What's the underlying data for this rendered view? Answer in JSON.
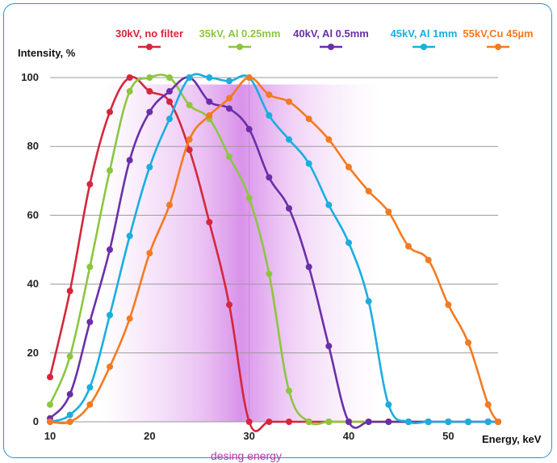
{
  "chart_data": {
    "type": "line",
    "title": "",
    "xlabel": "Energy, keV",
    "ylabel": "Intensity, %",
    "xlim": [
      10,
      55
    ],
    "ylim": [
      0,
      100
    ],
    "x_ticks": [
      "10",
      "20",
      "30",
      "40",
      "50"
    ],
    "y_ticks": [
      "0",
      "20",
      "40",
      "60",
      "80",
      "100"
    ],
    "grid": "horizontal",
    "legend_position": "top",
    "highlight_band": {
      "x_start": 20,
      "x_end": 40,
      "peak_x": 30,
      "label": "desing energy"
    },
    "series": [
      {
        "name": "30kV, no filter",
        "color": "#d6263b",
        "x": [
          10,
          12,
          14,
          16,
          18,
          20,
          22,
          24,
          26,
          28,
          30,
          32,
          34,
          36,
          38,
          40,
          42,
          44,
          46,
          48,
          50,
          52,
          54,
          55
        ],
        "y": [
          13,
          38,
          69,
          90,
          100,
          96,
          93,
          79,
          58,
          34,
          0,
          0,
          0,
          0,
          0,
          0,
          0,
          0,
          0,
          0,
          0,
          0,
          0,
          0
        ]
      },
      {
        "name": "35kV, Al 0.25mm",
        "color": "#8cc63f",
        "x": [
          10,
          12,
          14,
          16,
          18,
          20,
          22,
          24,
          26,
          28,
          30,
          32,
          34,
          36,
          38,
          40,
          42,
          44,
          46,
          48,
          50,
          52,
          54,
          55
        ],
        "y": [
          5,
          19,
          45,
          73,
          96,
          100,
          100,
          92,
          88,
          77,
          65,
          43,
          9,
          0,
          0,
          0,
          0,
          0,
          0,
          0,
          0,
          0,
          0,
          0
        ]
      },
      {
        "name": "40kV, Al 0.5mm",
        "color": "#6a2fa8",
        "x": [
          10,
          12,
          14,
          16,
          18,
          20,
          22,
          24,
          26,
          28,
          30,
          32,
          34,
          36,
          38,
          40,
          42,
          44,
          46,
          48,
          50,
          52,
          54,
          55
        ],
        "y": [
          1,
          8,
          29,
          50,
          76,
          90,
          96,
          100,
          93,
          91,
          85,
          71,
          62,
          45,
          22,
          0,
          0,
          0,
          0,
          0,
          0,
          0,
          0,
          0
        ]
      },
      {
        "name": "45kV, Al 1mm",
        "color": "#1aaee0",
        "x": [
          10,
          12,
          14,
          16,
          18,
          20,
          22,
          24,
          26,
          28,
          30,
          32,
          34,
          36,
          38,
          40,
          42,
          44,
          46,
          48,
          50,
          52,
          54,
          55
        ],
        "y": [
          0,
          2,
          10,
          31,
          54,
          74,
          88,
          100,
          100,
          99,
          100,
          89,
          82,
          75,
          63,
          52,
          35,
          5,
          0,
          0,
          0,
          0,
          0,
          0
        ]
      },
      {
        "name": "55kV,Cu 45µm",
        "color": "#f47a20",
        "x": [
          10,
          12,
          14,
          16,
          18,
          20,
          22,
          24,
          26,
          28,
          30,
          32,
          34,
          36,
          38,
          40,
          42,
          44,
          46,
          48,
          50,
          52,
          54,
          55
        ],
        "y": [
          0,
          0,
          5,
          16,
          30,
          49,
          63,
          82,
          89,
          94,
          100,
          95,
          93,
          88,
          82,
          74,
          67,
          61,
          51,
          47,
          34,
          23,
          5,
          0
        ]
      }
    ]
  }
}
